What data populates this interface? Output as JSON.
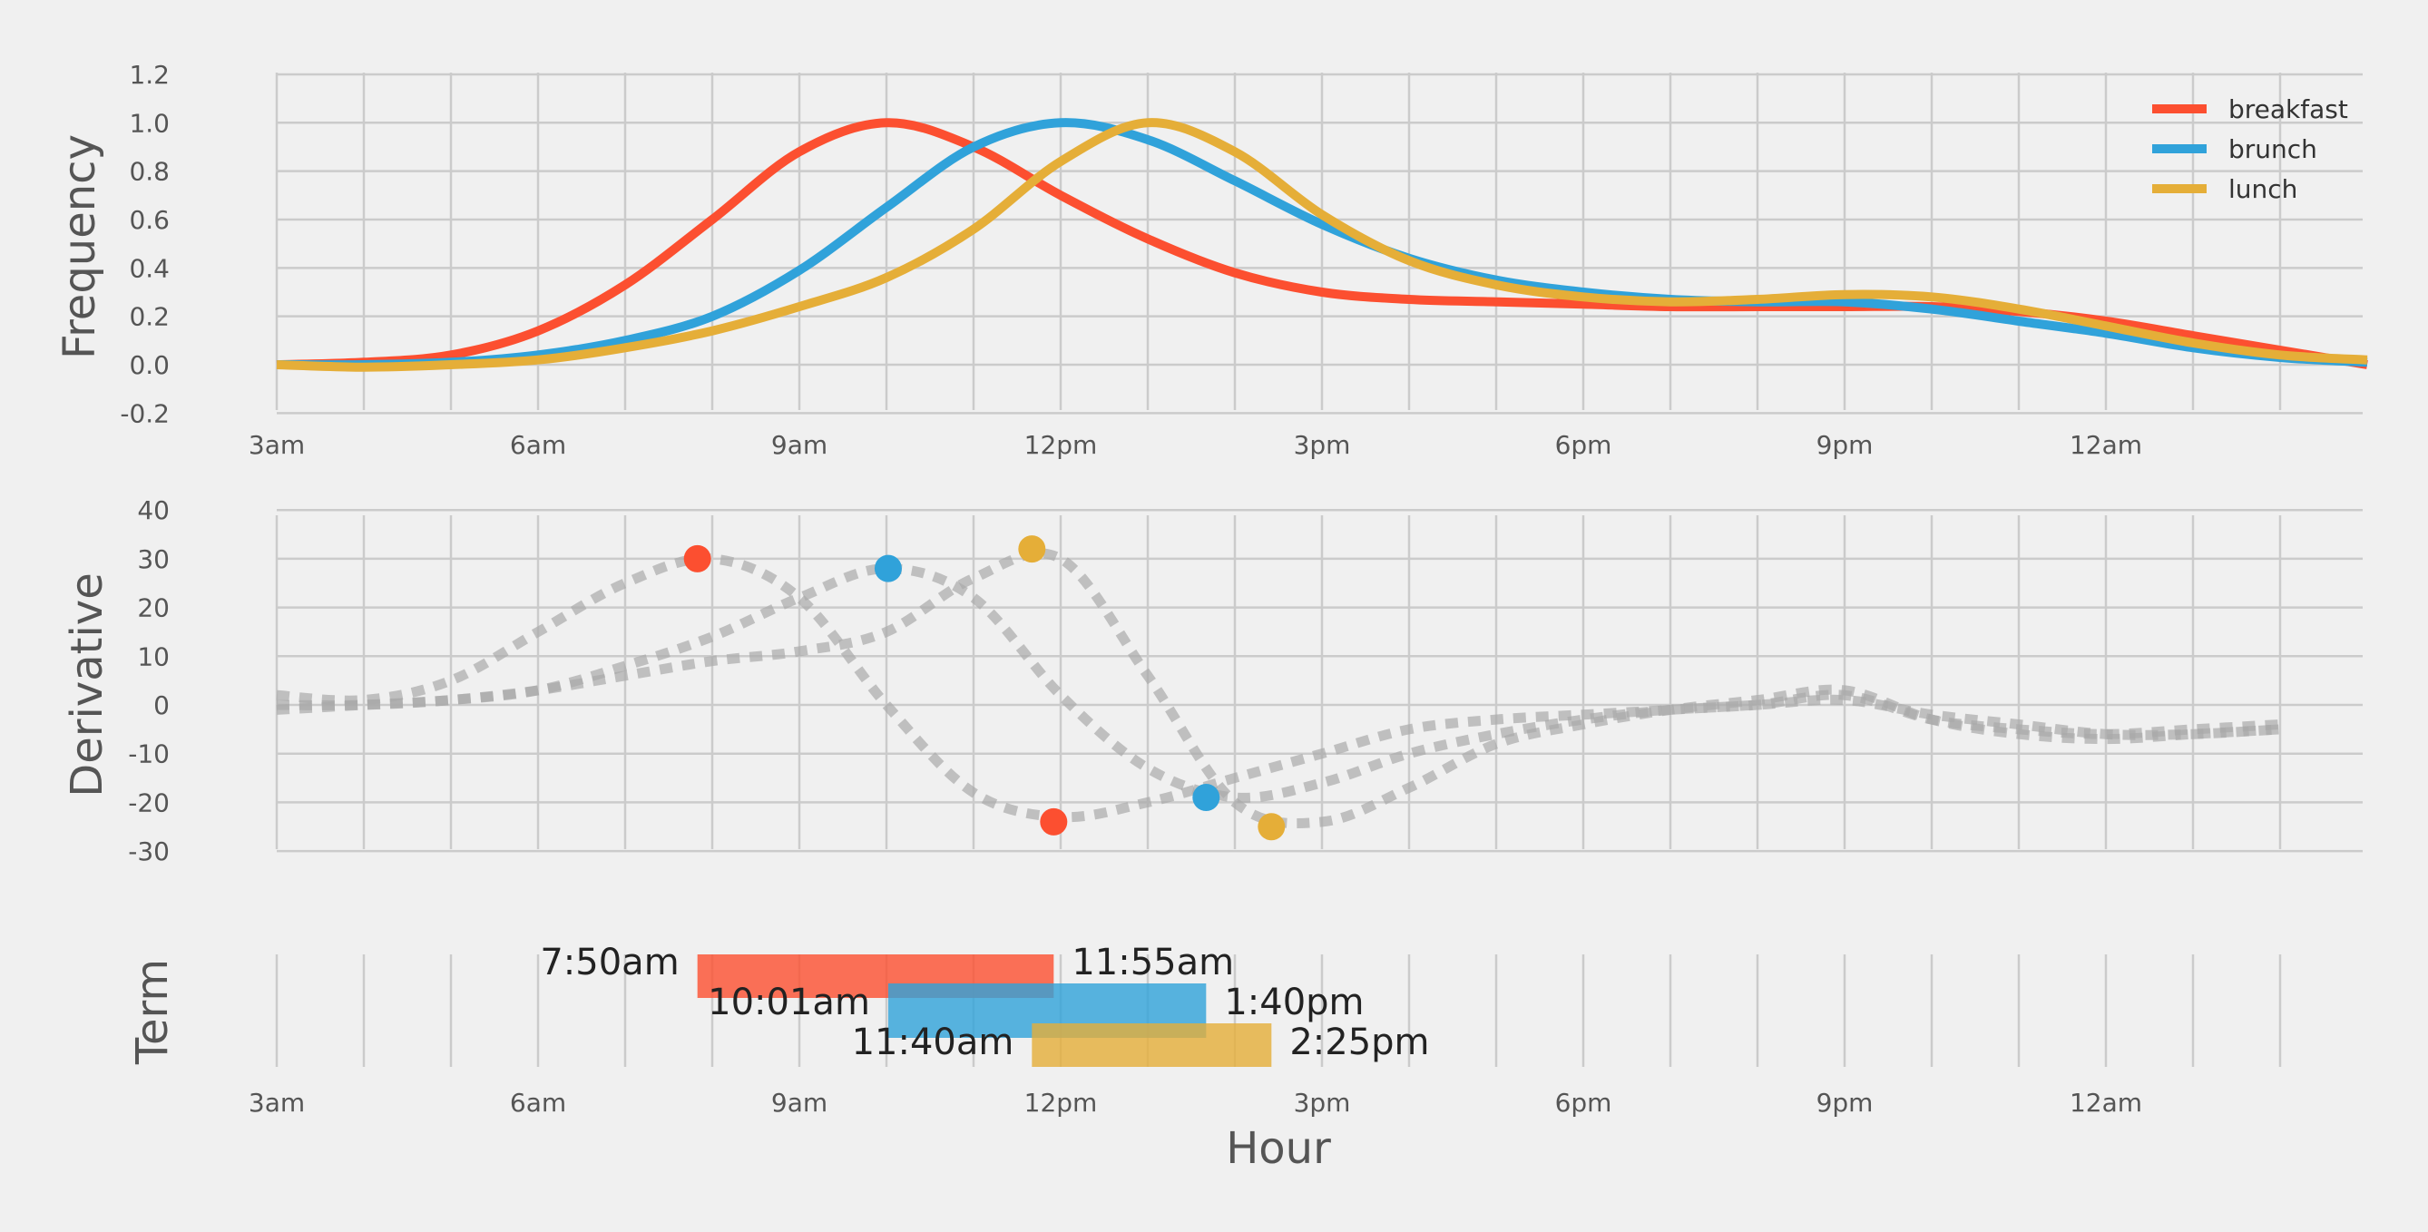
{
  "chart_data": [
    {
      "type": "line",
      "ylabel": "Frequency",
      "ylim": [
        -0.2,
        1.2
      ],
      "xlim": [
        3,
        27
      ],
      "grid": true,
      "legend_placement": "top-right",
      "xticks": [
        {
          "x": 3,
          "label": "3am"
        },
        {
          "x": 6,
          "label": "6am"
        },
        {
          "x": 9,
          "label": "9am"
        },
        {
          "x": 12,
          "label": "12pm"
        },
        {
          "x": 15,
          "label": "3pm"
        },
        {
          "x": 18,
          "label": "6pm"
        },
        {
          "x": 21,
          "label": "9pm"
        },
        {
          "x": 24,
          "label": "12am"
        }
      ],
      "yticks": [
        "-0.2",
        "0.0",
        "0.2",
        "0.4",
        "0.6",
        "0.8",
        "1.0",
        "1.2"
      ],
      "series": [
        {
          "name": "breakfast",
          "color": "#fc4f30",
          "x": [
            3,
            4,
            5,
            6,
            7,
            8,
            9,
            10,
            11,
            12,
            13,
            14,
            15,
            16,
            17,
            18,
            19,
            20,
            21,
            22,
            23,
            24,
            25,
            26,
            27
          ],
          "y": [
            0.0,
            0.01,
            0.04,
            0.14,
            0.33,
            0.6,
            0.88,
            1.0,
            0.9,
            0.7,
            0.52,
            0.38,
            0.3,
            0.27,
            0.26,
            0.25,
            0.24,
            0.24,
            0.24,
            0.24,
            0.22,
            0.18,
            0.12,
            0.06,
            0.0
          ]
        },
        {
          "name": "brunch",
          "color": "#30a2da",
          "x": [
            3,
            4,
            5,
            6,
            7,
            8,
            9,
            10,
            11,
            12,
            13,
            14,
            15,
            16,
            17,
            18,
            19,
            20,
            21,
            22,
            23,
            24,
            25,
            26,
            27
          ],
          "y": [
            0.0,
            0.0,
            0.01,
            0.04,
            0.1,
            0.2,
            0.39,
            0.65,
            0.9,
            1.0,
            0.93,
            0.76,
            0.58,
            0.44,
            0.35,
            0.3,
            0.27,
            0.26,
            0.26,
            0.23,
            0.18,
            0.13,
            0.07,
            0.03,
            0.01
          ]
        },
        {
          "name": "lunch",
          "color": "#e5ae38",
          "x": [
            3,
            4,
            5,
            6,
            7,
            8,
            9,
            10,
            11,
            12,
            13,
            14,
            15,
            16,
            17,
            18,
            19,
            20,
            21,
            22,
            23,
            24,
            25,
            26,
            27
          ],
          "y": [
            0.0,
            -0.01,
            0.0,
            0.02,
            0.07,
            0.14,
            0.24,
            0.36,
            0.56,
            0.84,
            1.0,
            0.88,
            0.62,
            0.43,
            0.33,
            0.28,
            0.26,
            0.27,
            0.29,
            0.28,
            0.23,
            0.16,
            0.09,
            0.04,
            0.02
          ]
        }
      ]
    },
    {
      "type": "line",
      "ylabel": "Derivative",
      "ylim": [
        -30,
        40
      ],
      "xlim": [
        3,
        27
      ],
      "grid": true,
      "yticks": [
        "-30",
        "-20",
        "-10",
        "0",
        "10",
        "20",
        "30",
        "40"
      ],
      "series": [
        {
          "color": "#aaaaaa",
          "x": [
            3,
            4,
            5,
            6,
            7,
            8,
            9,
            10,
            11,
            12,
            13,
            14,
            15,
            16,
            17,
            18,
            19,
            20,
            21,
            22,
            23,
            24,
            25,
            26
          ],
          "y": [
            2,
            1,
            5,
            15,
            25,
            30,
            22,
            0,
            -18,
            -23,
            -20,
            -15,
            -10,
            -5,
            -3,
            -2,
            -1,
            0,
            1,
            -2,
            -4,
            -6,
            -6,
            -5
          ],
          "markers": [
            {
              "x": 7.83,
              "y": 30
            },
            {
              "x": 11.92,
              "y": -24
            }
          ]
        },
        {
          "color": "#aaaaaa",
          "x": [
            3,
            4,
            5,
            6,
            7,
            8,
            9,
            10,
            11,
            12,
            13,
            14,
            15,
            16,
            17,
            18,
            19,
            20,
            21,
            22,
            23,
            24,
            25,
            26
          ],
          "y": [
            0,
            0,
            1,
            3,
            8,
            14,
            22,
            28,
            22,
            2,
            -13,
            -19,
            -16,
            -10,
            -6,
            -3,
            -1,
            0,
            2,
            -3,
            -5,
            -6,
            -5,
            -4
          ],
          "markers": [
            {
              "x": 10.02,
              "y": 28
            },
            {
              "x": 13.67,
              "y": -19
            }
          ]
        },
        {
          "color": "#aaaaaa",
          "x": [
            3,
            4,
            5,
            6,
            7,
            8,
            9,
            10,
            11,
            12,
            13,
            14,
            15,
            16,
            17,
            18,
            19,
            20,
            21,
            22,
            23,
            24,
            25,
            26
          ],
          "y": [
            -1,
            0,
            1,
            3,
            6,
            9,
            11,
            15,
            26,
            30,
            6,
            -20,
            -24,
            -17,
            -8,
            -4,
            -1,
            1,
            3,
            -3,
            -6,
            -7,
            -6,
            -5
          ],
          "markers": [
            {
              "x": 11.67,
              "y": 32
            },
            {
              "x": 14.42,
              "y": -25
            }
          ]
        }
      ],
      "marker_colors": [
        "#fc4f30",
        "#30a2da",
        "#e5ae38"
      ]
    },
    {
      "type": "bar",
      "orientation": "horizontal",
      "ylabel": "Term",
      "xlabel": "Hour",
      "xlim": [
        3,
        27
      ],
      "grid": true,
      "bars": [
        {
          "name": "breakfast",
          "color": "#fc4f30",
          "start": 7.83,
          "end": 11.92,
          "start_label": "7:50am",
          "end_label": "11:55am"
        },
        {
          "name": "brunch",
          "color": "#30a2da",
          "start": 10.02,
          "end": 13.67,
          "start_label": "10:01am",
          "end_label": "1:40pm"
        },
        {
          "name": "lunch",
          "color": "#e5ae38",
          "start": 11.67,
          "end": 14.42,
          "start_label": "11:40am",
          "end_label": "2:25pm"
        }
      ]
    }
  ]
}
